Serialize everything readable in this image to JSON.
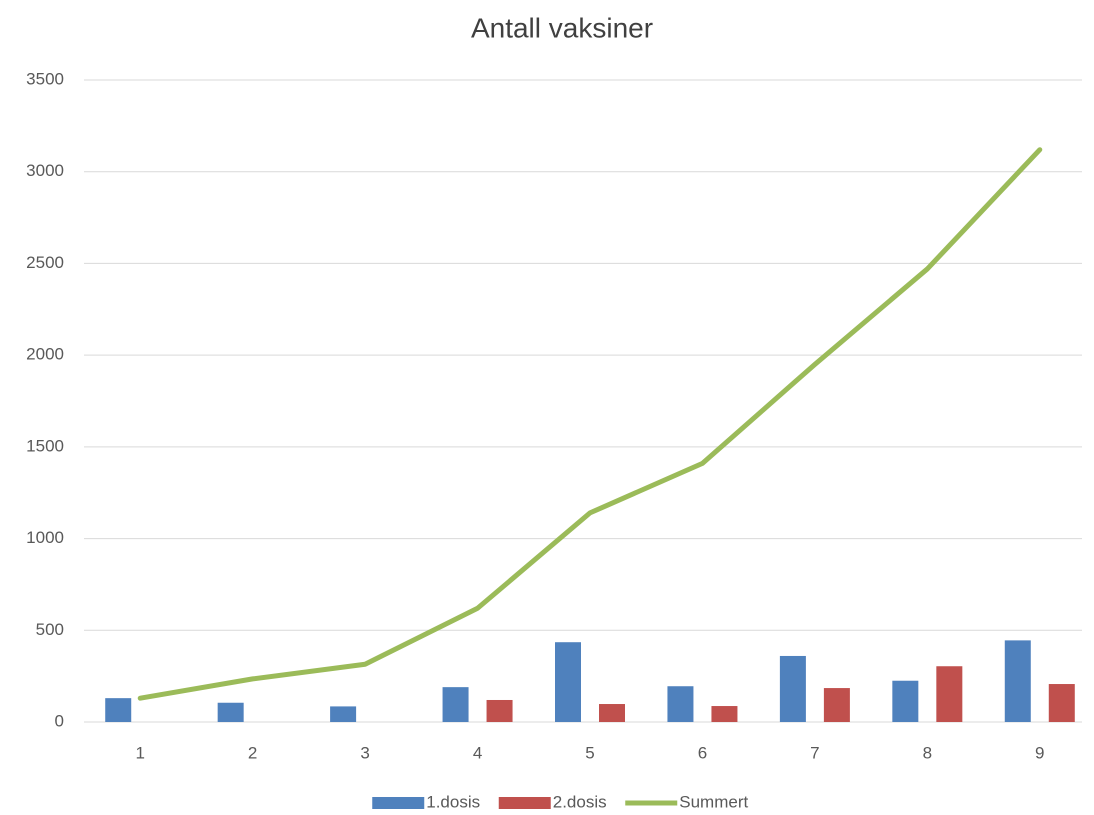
{
  "chart_data": {
    "type": "bar-line",
    "title": "Antall vaksiner",
    "categories": [
      "1",
      "2",
      "3",
      "4",
      "5",
      "6",
      "7",
      "8",
      "9"
    ],
    "series": [
      {
        "name": "1.dosis",
        "type": "bar",
        "color": "#4f81bd",
        "values": [
          130,
          105,
          85,
          190,
          435,
          195,
          360,
          225,
          445
        ]
      },
      {
        "name": "2.dosis",
        "type": "bar",
        "color": "#c0504d",
        "values": [
          0,
          0,
          0,
          120,
          98,
          87,
          185,
          304,
          207
        ]
      },
      {
        "name": "Summert",
        "type": "line",
        "color": "#9bbb59",
        "values": [
          130,
          235,
          315,
          620,
          1140,
          1410,
          1950,
          2470,
          3120
        ]
      }
    ],
    "ylim": [
      0,
      3500
    ],
    "yticks": [
      0,
      500,
      1000,
      1500,
      2000,
      2500,
      3000,
      3500
    ],
    "grid": true,
    "legend": "bottom"
  }
}
